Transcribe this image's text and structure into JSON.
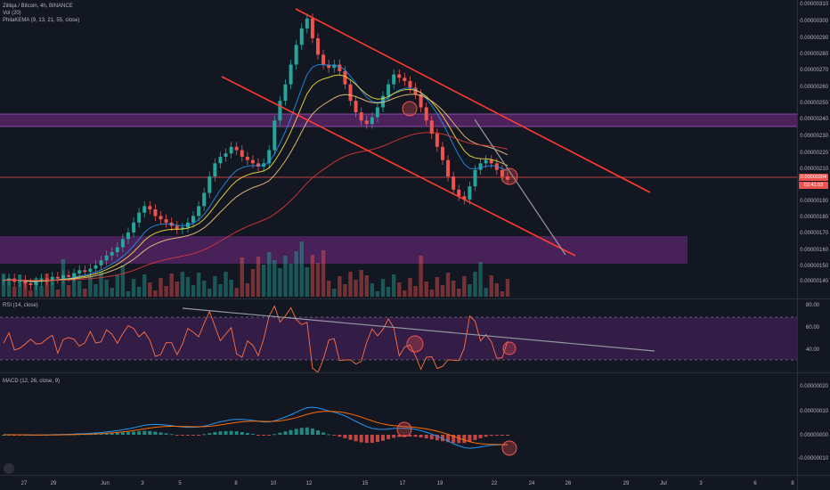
{
  "legend": {
    "title": "Zilliqa / Bitcoin, 4h, BINANCE",
    "vol": "Vol (20)",
    "ema": "PhilaKEMA (9, 13, 21, 55, close)",
    "rsi": "RSI (14, close)",
    "macd": "MACD (12, 26, close, 9)"
  },
  "price_axis": [
    "0.00000310",
    "0.00000300",
    "0.00000290",
    "0.00000280",
    "0.00000270",
    "0.00000260",
    "0.00000250",
    "0.00000240",
    "0.00000230",
    "0.00000220",
    "0.00000210",
    "0.00000190",
    "0.00000180",
    "0.00000170",
    "0.00000160",
    "0.00000150",
    "0.00000140"
  ],
  "price_tag": "0.00000204",
  "countdown_tag": "02:41:53",
  "rsi_axis": [
    "80.00",
    "60.00",
    "40.00"
  ],
  "macd_axis": [
    "0.00000020",
    "0.00000010",
    "0.00000000",
    "-0.00000010"
  ],
  "time_axis": [
    "27",
    "29",
    "Jun",
    "3",
    "5",
    "8",
    "10",
    "12",
    "15",
    "17",
    "19",
    "22",
    "24",
    "26",
    "29",
    "Jul",
    "3",
    "6",
    "8"
  ],
  "colors": {
    "up": "#26a69a",
    "down": "#ef5350",
    "trend": "#ff3b30",
    "zone": "#7b2b8e",
    "bg": "#131722"
  },
  "chart_data": {
    "type": "candlestick",
    "symbol": "Zilliqa / Bitcoin",
    "interval": "4h",
    "exchange": "BINANCE",
    "last_price": 2.04e-06,
    "price_range": [
      1.4e-06,
      3.1e-06
    ],
    "rsi_range": [
      30,
      85
    ],
    "rsi_levels": [
      70,
      30
    ],
    "macd_range": [
      -1.2e-07,
      2.2e-07
    ],
    "close": [
      1.43,
      1.44,
      1.42,
      1.43,
      1.41,
      1.4,
      1.42,
      1.44,
      1.43,
      1.45,
      1.44,
      1.46,
      1.45,
      1.47,
      1.49,
      1.48,
      1.5,
      1.52,
      1.55,
      1.58,
      1.6,
      1.63,
      1.68,
      1.72,
      1.78,
      1.84,
      1.88,
      1.86,
      1.82,
      1.8,
      1.78,
      1.76,
      1.74,
      1.75,
      1.78,
      1.82,
      1.88,
      1.96,
      2.06,
      2.14,
      2.18,
      2.2,
      2.24,
      2.22,
      2.18,
      2.16,
      2.14,
      2.12,
      2.14,
      2.22,
      2.4,
      2.52,
      2.62,
      2.74,
      2.86,
      2.96,
      3.02,
      2.9,
      2.8,
      2.74,
      2.72,
      2.74,
      2.7,
      2.62,
      2.52,
      2.45,
      2.4,
      2.38,
      2.42,
      2.48,
      2.55,
      2.62,
      2.68,
      2.66,
      2.64,
      2.6,
      2.56,
      2.48,
      2.4,
      2.32,
      2.24,
      2.16,
      2.06,
      1.98,
      1.94,
      1.92,
      2.0,
      2.1,
      2.14,
      2.16,
      2.14,
      2.1,
      2.06,
      2.04
    ]
  }
}
